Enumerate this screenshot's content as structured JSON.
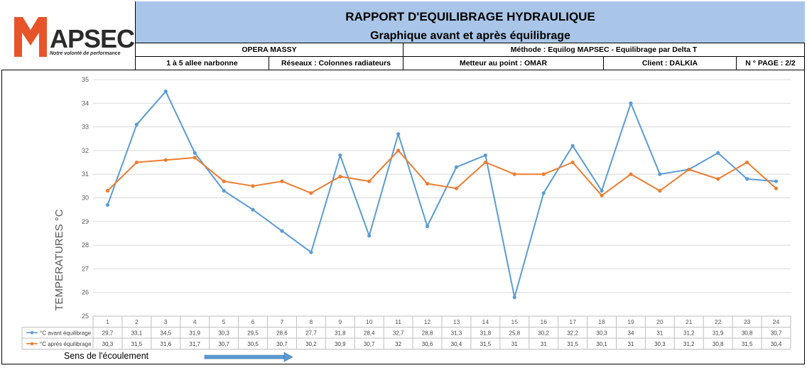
{
  "logo": {
    "letter": "M",
    "text": "APSEC",
    "tagline": "Notre volonté de performance"
  },
  "header": {
    "title": "RAPPORT D'EQUILIBRAGE HYDRAULIQUE",
    "subtitle": "Graphique avant et après équilibrage",
    "site": "OPERA MASSY",
    "methode": "Méthode : Equilog MAPSEC - Equilibrage par Delta T",
    "adresse": "1 à 5 allee narbonne",
    "reseaux": "Réseaux : Colonnes radiateurs",
    "metteur": "Metteur au point :  OMAR",
    "client": "Client : DALKIA",
    "page": "N ° PAGE : 2/2"
  },
  "footer": {
    "flow_label": "Sens de l'écoulement"
  },
  "colors": {
    "before": "#5b9bd5",
    "after": "#ed7d31",
    "title_band": "#a9c6e8",
    "logo_accent": "#e8542a"
  },
  "chart_data": {
    "type": "line",
    "ylabel": "TEMPERATURES °C",
    "ylim": [
      25,
      35
    ],
    "yticks": [
      25,
      26,
      27,
      28,
      29,
      30,
      31,
      32,
      33,
      34,
      35
    ],
    "grid": true,
    "categories": [
      "1",
      "2",
      "3",
      "4",
      "5",
      "6",
      "7",
      "8",
      "9",
      "10",
      "11",
      "12",
      "13",
      "14",
      "15",
      "16",
      "17",
      "18",
      "19",
      "20",
      "21",
      "22",
      "23",
      "24"
    ],
    "series": [
      {
        "name": "°C avant équilibrage",
        "color": "#5b9bd5",
        "values": [
          29.7,
          33.1,
          34.5,
          31.9,
          30.3,
          29.5,
          28.6,
          27.7,
          31.8,
          28.4,
          32.7,
          28.8,
          31.3,
          31.8,
          25.8,
          30.2,
          32.2,
          30.3,
          34,
          31,
          31.2,
          31.9,
          30.8,
          30.7
        ],
        "labels": [
          "29,7",
          "33,1",
          "34,5",
          "31,9",
          "30,3",
          "29,5",
          "28,6",
          "27,7",
          "31,8",
          "28,4",
          "32,7",
          "28,8",
          "31,3",
          "31,8",
          "25,8",
          "30,2",
          "32,2",
          "30,3",
          "34",
          "31",
          "31,2",
          "31,9",
          "30,8",
          "30,7"
        ]
      },
      {
        "name": "°C après équilibrage",
        "color": "#ed7d31",
        "values": [
          30.3,
          31.5,
          31.6,
          31.7,
          30.7,
          30.5,
          30.7,
          30.2,
          30.9,
          30.7,
          32,
          30.6,
          30.4,
          31.5,
          31,
          31,
          31.5,
          30.1,
          31,
          30.3,
          31.2,
          30.8,
          31.5,
          30.4
        ],
        "labels": [
          "30,3",
          "31,5",
          "31,6",
          "31,7",
          "30,7",
          "30,5",
          "30,7",
          "30,2",
          "30,9",
          "30,7",
          "32",
          "30,6",
          "30,4",
          "31,5",
          "31",
          "31",
          "31,5",
          "30,1",
          "31",
          "30,3",
          "31,2",
          "30,8",
          "31,5",
          "30,4"
        ]
      }
    ]
  }
}
